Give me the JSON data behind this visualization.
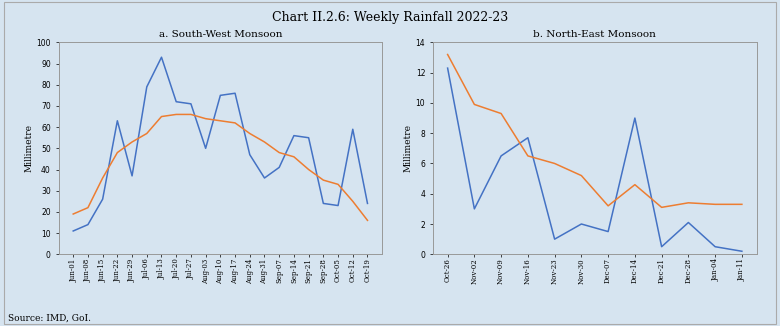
{
  "title": "Chart II.2.6: Weekly Rainfall 2022-23",
  "title_fontsize": 9,
  "source": "Source: IMD, GoI.",
  "bg_color": "#d6e4f0",
  "plot_bg": "#d6e4f0",
  "sw_title": "a. South-West Monsoon",
  "ne_title": "b. North-East Monsoon",
  "ylabel": "Millimetre",
  "actual_color": "#4472c4",
  "normal_color": "#ed7d31",
  "sw_xlabels": [
    "Jun-01",
    "Jun-08",
    "Jun-15",
    "Jun-22",
    "Jun-29",
    "Jul-06",
    "Jul-13",
    "Jul-20",
    "Jul-27",
    "Aug-03",
    "Aug-10",
    "Aug-17",
    "Aug-24",
    "Aug-31",
    "Sep-07",
    "Sep-14",
    "Sep-21",
    "Sep-28",
    "Oct-05",
    "Oct-12",
    "Oct-19"
  ],
  "sw_actual": [
    11,
    14,
    26,
    63,
    37,
    79,
    93,
    72,
    71,
    50,
    75,
    76,
    47,
    36,
    41,
    56,
    55,
    24,
    23,
    59,
    24
  ],
  "sw_normal": [
    19,
    22,
    36,
    48,
    53,
    57,
    65,
    66,
    66,
    64,
    63,
    62,
    57,
    53,
    48,
    46,
    40,
    35,
    33,
    25,
    16
  ],
  "sw_ylim": [
    0,
    100
  ],
  "sw_yticks": [
    0,
    10,
    20,
    30,
    40,
    50,
    60,
    70,
    80,
    90,
    100
  ],
  "ne_xlabels": [
    "Oct-26",
    "Nov-02",
    "Nov-09",
    "Nov-16",
    "Nov-23",
    "Nov-30",
    "Dec-07",
    "Dec-14",
    "Dec-21",
    "Dec-28",
    "Jan-04",
    "Jan-11"
  ],
  "ne_actual": [
    12.3,
    3.0,
    6.5,
    7.7,
    1.0,
    2.0,
    1.5,
    9.0,
    0.5,
    2.1,
    0.5,
    0.2
  ],
  "ne_normal": [
    13.2,
    9.9,
    9.3,
    6.5,
    6.0,
    5.2,
    3.2,
    4.6,
    3.1,
    3.4,
    3.3,
    3.3
  ],
  "ne_ylim": [
    0,
    14
  ],
  "ne_yticks": [
    0,
    2,
    4,
    6,
    8,
    10,
    12,
    14
  ]
}
